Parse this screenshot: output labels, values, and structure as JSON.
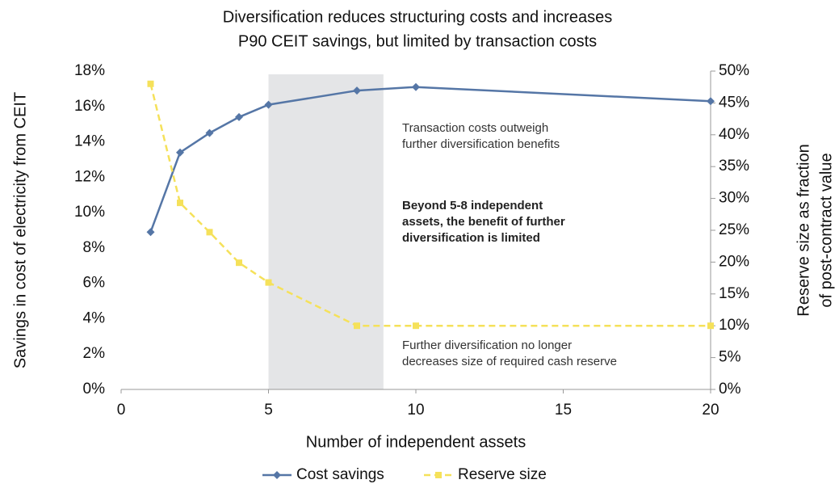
{
  "chart_data": {
    "type": "line",
    "title": [
      "Diversification reduces structuring costs and increases",
      "P90 CEIT savings, but limited by transaction costs"
    ],
    "xlabel": "Number of independent assets",
    "ylabel": "Savings in cost of electricity from CEIT",
    "y2label": [
      "Reserve size as fraction",
      "of post-contract value"
    ],
    "x": [
      1,
      2,
      3,
      4,
      5,
      8,
      10,
      20
    ],
    "series": [
      {
        "name": "Cost savings",
        "color": "#5576a6",
        "values": [
          8.9,
          13.4,
          14.5,
          15.4,
          16.1,
          16.9,
          17.1,
          16.3
        ]
      },
      {
        "name": "Reserve size",
        "color": "#f5e15a",
        "axis": "y2",
        "values": [
          48,
          29.3,
          24.7,
          19.9,
          16.8,
          10,
          10,
          10
        ]
      }
    ],
    "xlim": [
      0,
      20
    ],
    "xticks": [
      0,
      5,
      10,
      15,
      20
    ],
    "ylim": [
      0,
      18
    ],
    "yticks": [
      {
        "value": 0,
        "label": "0%"
      },
      {
        "value": 2,
        "label": "2%"
      },
      {
        "value": 4,
        "label": "4%"
      },
      {
        "value": 6,
        "label": "6%"
      },
      {
        "value": 8,
        "label": "8%"
      },
      {
        "value": 10,
        "label": "10%"
      },
      {
        "value": 12,
        "label": "12%"
      },
      {
        "value": 14,
        "label": "14%"
      },
      {
        "value": 16,
        "label": "16%"
      },
      {
        "value": 18,
        "label": "18%"
      }
    ],
    "y2lim": [
      0,
      50
    ],
    "y2ticks": [
      {
        "value": 0,
        "label": "0%"
      },
      {
        "value": 5,
        "label": "5%"
      },
      {
        "value": 10,
        "label": "10%"
      },
      {
        "value": 15,
        "label": "15%"
      },
      {
        "value": 20,
        "label": "20%"
      },
      {
        "value": 25,
        "label": "25%"
      },
      {
        "value": 30,
        "label": "30%"
      },
      {
        "value": 35,
        "label": "35%"
      },
      {
        "value": 40,
        "label": "40%"
      },
      {
        "value": 45,
        "label": "45%"
      },
      {
        "value": 50,
        "label": "50%"
      }
    ],
    "shaded_region": [
      5,
      8.9
    ],
    "annotations": [
      [
        "Transaction costs outweigh",
        "further diversification benefits"
      ],
      [
        "Beyond 5-8 independent",
        "assets, the benefit of further",
        "diversification is limited"
      ],
      [
        "Further diversification no longer",
        "decreases size of required cash reserve"
      ]
    ],
    "legend": "bottom"
  }
}
